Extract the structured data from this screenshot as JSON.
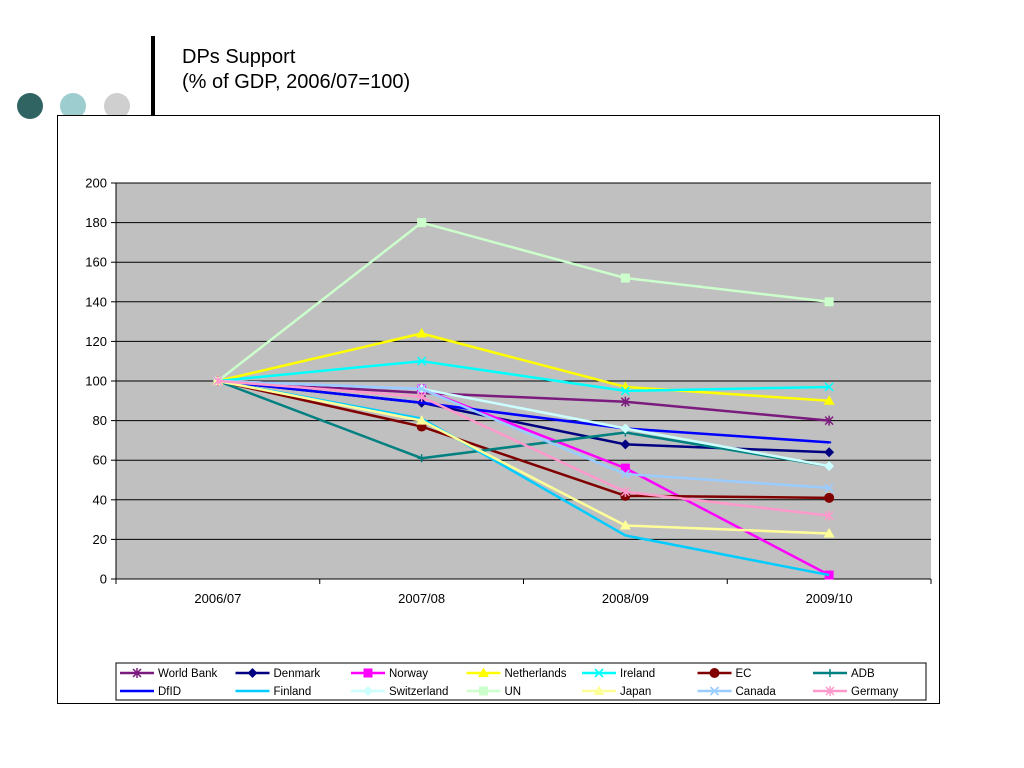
{
  "slide": {
    "title_line1": "DPs Support",
    "title_line2": "(% of GDP, 2006/07=100)",
    "decor_colors": [
      "#2f6463",
      "#9ecdd0",
      "#cfcfcf"
    ]
  },
  "chart_data": {
    "type": "line",
    "categories": [
      "2006/07",
      "2007/08",
      "2008/09",
      "2009/10"
    ],
    "ylim": [
      0,
      200
    ],
    "yticks": [
      0,
      20,
      40,
      60,
      80,
      100,
      120,
      140,
      160,
      180,
      200
    ],
    "grid": true,
    "plot_background": "#c0c0c0",
    "legend_placement": "bottom",
    "series": [
      {
        "name": "World Bank",
        "values": [
          100,
          94,
          89.5,
          80
        ],
        "color": "#7b1b7e",
        "marker": "asterisk"
      },
      {
        "name": "Denmark",
        "values": [
          100,
          89,
          68,
          64
        ],
        "color": "#000080",
        "marker": "diamond"
      },
      {
        "name": "Norway",
        "values": [
          100,
          96,
          56,
          2
        ],
        "color": "#ff00ff",
        "marker": "square"
      },
      {
        "name": "Netherlands",
        "values": [
          100,
          124,
          97,
          90
        ],
        "color": "#ffff00",
        "marker": "triangle"
      },
      {
        "name": "Ireland",
        "values": [
          100,
          110,
          95,
          97
        ],
        "color": "#00ffff",
        "marker": "x"
      },
      {
        "name": "EC",
        "values": [
          100,
          77,
          42,
          41
        ],
        "color": "#800000",
        "marker": "circle"
      },
      {
        "name": "ADB",
        "values": [
          100,
          61,
          74,
          57
        ],
        "color": "#008080",
        "marker": "plus"
      },
      {
        "name": "DfID",
        "values": [
          100,
          89,
          76,
          69
        ],
        "color": "#0000ff",
        "marker": "dash"
      },
      {
        "name": "Finland",
        "values": [
          100,
          81,
          22,
          2
        ],
        "color": "#00ccff",
        "marker": "none"
      },
      {
        "name": "Switzerland",
        "values": [
          100,
          96,
          76,
          57
        ],
        "color": "#ccffff",
        "marker": "diamond"
      },
      {
        "name": "UN",
        "values": [
          100,
          180,
          152,
          140
        ],
        "color": "#ccffcc",
        "marker": "square"
      },
      {
        "name": "Japan",
        "values": [
          100,
          80,
          27,
          23
        ],
        "color": "#ffff99",
        "marker": "triangle"
      },
      {
        "name": "Canada",
        "values": [
          100,
          96,
          53,
          46
        ],
        "color": "#99ccff",
        "marker": "x"
      },
      {
        "name": "Germany",
        "values": [
          100,
          92,
          44,
          32
        ],
        "color": "#ff99cc",
        "marker": "asterisk"
      }
    ]
  }
}
